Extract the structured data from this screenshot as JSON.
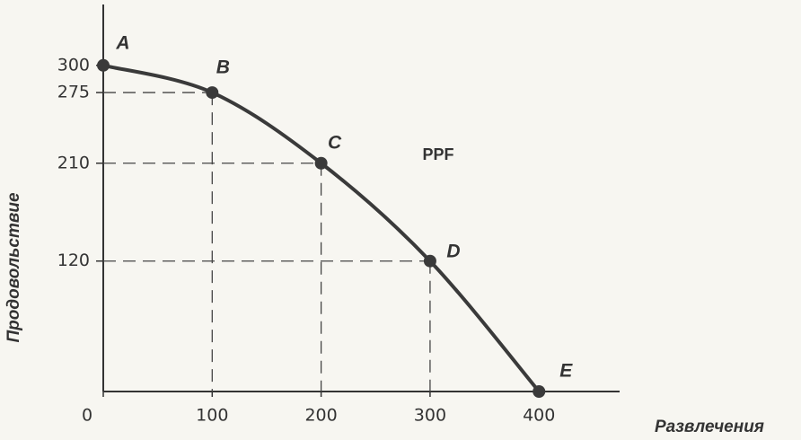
{
  "chart_data": {
    "type": "line",
    "x_label": "Развлечения",
    "y_label": "Продовольствие",
    "annotation": "PPF",
    "x": [
      0,
      100,
      200,
      300,
      400
    ],
    "point_labels": [
      "A",
      "B",
      "C",
      "D",
      "E"
    ],
    "series": [
      {
        "values": [
          300,
          275,
          210,
          120,
          0
        ],
        "color": "#3a3a3a"
      }
    ],
    "xlim": [
      0,
      474
    ],
    "ylim": [
      0,
      356
    ],
    "xticks": [
      0,
      100,
      200,
      300,
      400
    ],
    "yticks": [
      120,
      210,
      275,
      300
    ]
  }
}
